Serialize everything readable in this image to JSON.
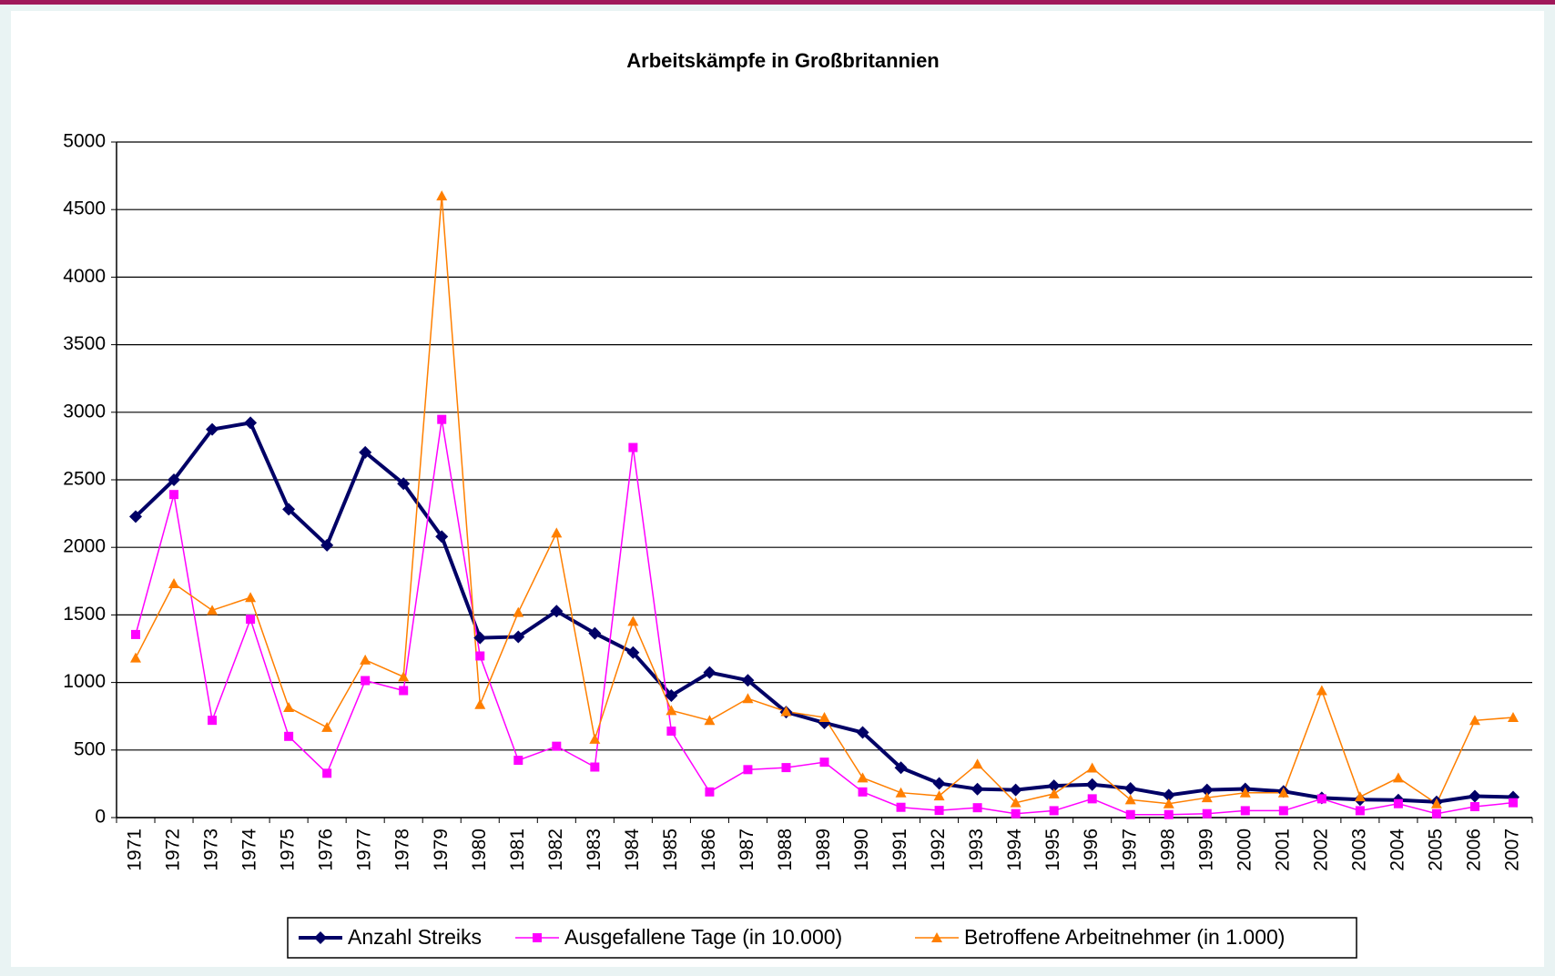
{
  "chart_data": {
    "type": "line",
    "title": "Arbeitskämpfe in Großbritannien",
    "categories": [
      "1971",
      "1972",
      "1973",
      "1974",
      "1975",
      "1976",
      "1977",
      "1978",
      "1979",
      "1980",
      "1981",
      "1982",
      "1983",
      "1984",
      "1985",
      "1986",
      "1987",
      "1988",
      "1989",
      "1990",
      "1991",
      "1992",
      "1993",
      "1994",
      "1995",
      "1996",
      "1997",
      "1998",
      "1999",
      "2000",
      "2001",
      "2002",
      "2003",
      "2004",
      "2005",
      "2006",
      "2007"
    ],
    "series": [
      {
        "name": "Anzahl Streiks",
        "color": "#000066",
        "marker": "diamond",
        "values": [
          2228,
          2500,
          2873,
          2922,
          2282,
          2016,
          2703,
          2471,
          2080,
          1330,
          1338,
          1528,
          1364,
          1221,
          903,
          1074,
          1016,
          781,
          701,
          630,
          369,
          253,
          211,
          205,
          235,
          244,
          216,
          166,
          205,
          212,
          194,
          146,
          133,
          130,
          116,
          158,
          152
        ]
      },
      {
        "name": "Ausgefallene Tage (in 10.000)",
        "color": "#ff00ff",
        "marker": "square",
        "values": [
          1355,
          2391,
          720,
          1468,
          601,
          328,
          1014,
          940,
          2947,
          1196,
          424,
          528,
          374,
          2739,
          640,
          190,
          355,
          370,
          410,
          190,
          76,
          53,
          73,
          29,
          51,
          139,
          22,
          22,
          29,
          51,
          51,
          139,
          51,
          103,
          29,
          81,
          110
        ]
      },
      {
        "name": "Betroffene Arbeitnehmer (in 1.000)",
        "color": "#ff7f00",
        "marker": "triangle",
        "values": [
          1182,
          1732,
          1534,
          1629,
          815,
          668,
          1167,
          1042,
          4602,
          837,
          1519,
          2107,
          580,
          1453,
          793,
          719,
          881,
          785,
          741,
          294,
          184,
          161,
          396,
          110,
          176,
          367,
          132,
          103,
          147,
          184,
          184,
          940,
          154,
          294,
          103,
          719,
          741
        ]
      }
    ],
    "ylim": [
      0,
      5000
    ],
    "yticks": [
      0,
      500,
      1000,
      1500,
      2000,
      2500,
      3000,
      3500,
      4000,
      4500,
      5000
    ],
    "grid": true,
    "legend": "bottom"
  }
}
